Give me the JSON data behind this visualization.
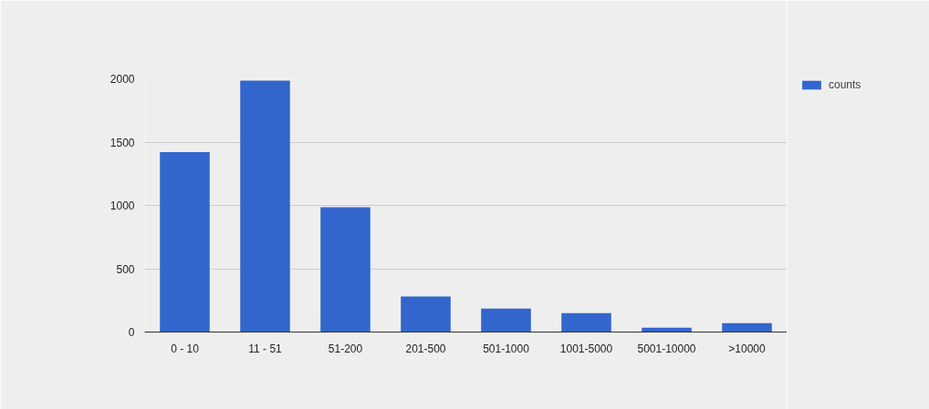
{
  "chart_data": {
    "type": "bar",
    "categories": [
      "0 - 10",
      "11 - 51",
      "51-200",
      "201-500",
      "501-1000",
      "1001-5000",
      "5001-10000",
      ">10000"
    ],
    "series": [
      {
        "name": "counts",
        "color": "#3366cc",
        "values": [
          1420,
          1985,
          985,
          280,
          185,
          150,
          35,
          70
        ]
      }
    ],
    "ylim": [
      0,
      2000
    ],
    "yticks": [
      0,
      500,
      1000,
      1500,
      2000
    ],
    "grid": "y",
    "legend": "top right"
  }
}
